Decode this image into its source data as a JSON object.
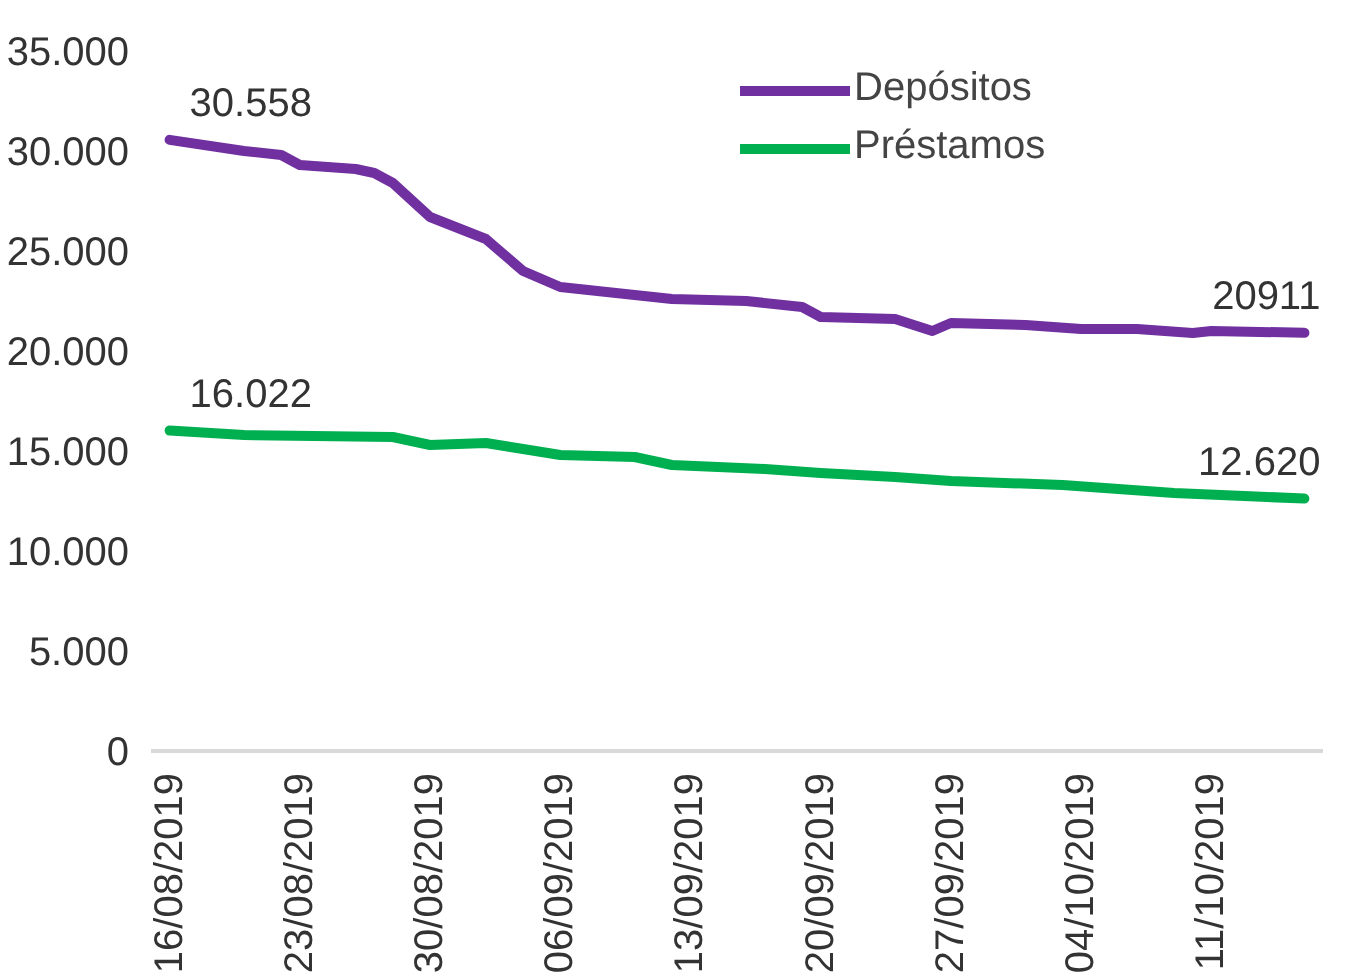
{
  "chart_data": {
    "type": "line",
    "x": [
      "2019-08-16",
      "2019-08-20",
      "2019-08-22",
      "2019-08-23",
      "2019-08-26",
      "2019-08-27",
      "2019-08-28",
      "2019-08-30",
      "2019-09-02",
      "2019-09-04",
      "2019-09-06",
      "2019-09-09",
      "2019-09-12",
      "2019-09-16",
      "2019-09-19",
      "2019-09-20",
      "2019-09-24",
      "2019-09-26",
      "2019-09-27",
      "2019-10-01",
      "2019-10-04",
      "2019-10-07",
      "2019-10-10",
      "2019-10-11",
      "2019-10-16"
    ],
    "series": [
      {
        "name": "Depósitos",
        "color": "#7030a0",
        "values": [
          30558,
          30000,
          29800,
          29300,
          29100,
          28900,
          28400,
          26700,
          25600,
          24000,
          23200,
          22900,
          22600,
          22500,
          22200,
          21700,
          21600,
          21000,
          21400,
          21300,
          21100,
          21100,
          20900,
          21000,
          20911
        ],
        "value_labels": [
          "30.558",
          null,
          null,
          null,
          null,
          null,
          null,
          null,
          null,
          null,
          null,
          null,
          null,
          null,
          null,
          null,
          null,
          null,
          null,
          null,
          null,
          null,
          null,
          null,
          "20911"
        ]
      },
      {
        "name": "Préstamos",
        "color": "#00b050",
        "x": [
          "2019-08-16",
          "2019-08-20",
          "2019-08-28",
          "2019-08-30",
          "2019-09-02",
          "2019-09-04",
          "2019-09-06",
          "2019-09-10",
          "2019-09-12",
          "2019-09-17",
          "2019-09-20",
          "2019-09-24",
          "2019-09-27",
          "2019-10-03",
          "2019-10-09",
          "2019-10-14",
          "2019-10-16"
        ],
        "values": [
          16022,
          15800,
          15700,
          15300,
          15400,
          15100,
          14800,
          14700,
          14300,
          14100,
          13900,
          13700,
          13500,
          13300,
          12900,
          12700,
          12620
        ],
        "value_labels": [
          "16.022",
          null,
          null,
          null,
          null,
          null,
          null,
          null,
          null,
          null,
          null,
          null,
          null,
          null,
          null,
          null,
          "12.620"
        ]
      }
    ],
    "xlim": [
      "2019-08-15",
      "2019-10-17"
    ],
    "xticks": [
      {
        "value": "2019-08-16",
        "label": "16/08/2019"
      },
      {
        "value": "2019-08-23",
        "label": "23/08/2019"
      },
      {
        "value": "2019-08-30",
        "label": "30/08/2019"
      },
      {
        "value": "2019-09-06",
        "label": "06/09/2019"
      },
      {
        "value": "2019-09-13",
        "label": "13/09/2019"
      },
      {
        "value": "2019-09-20",
        "label": "20/09/2019"
      },
      {
        "value": "2019-09-27",
        "label": "27/09/2019"
      },
      {
        "value": "2019-10-04",
        "label": "04/10/2019"
      },
      {
        "value": "2019-10-11",
        "label": "11/10/2019"
      }
    ],
    "ylim": [
      0,
      35000
    ],
    "yticks": [
      0,
      {
        "value": 5000,
        "label": "5.000"
      },
      {
        "value": 10000,
        "label": "10.000"
      },
      {
        "value": 15000,
        "label": "15.000"
      },
      {
        "value": 20000,
        "label": "20.000"
      },
      {
        "value": 25000,
        "label": "25.000"
      },
      {
        "value": 30000,
        "label": "30.000"
      },
      {
        "value": 35000,
        "label": "35.000"
      }
    ],
    "grid": false,
    "legend": "top",
    "marker": "none",
    "line_style": "solid"
  }
}
